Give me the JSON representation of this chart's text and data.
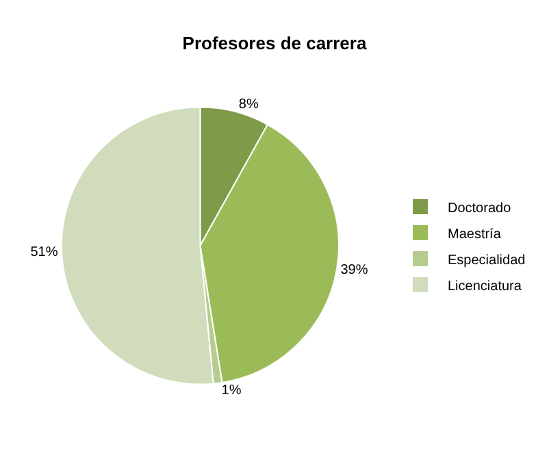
{
  "chart_data": {
    "type": "pie",
    "title": "Profesores de carrera",
    "categories": [
      "Doctorado",
      "Maestría",
      "Especialidad",
      "Licenciatura"
    ],
    "values": [
      8,
      39,
      1,
      51
    ],
    "value_labels": [
      "8%",
      "39%",
      "1%",
      "51%"
    ],
    "colors": [
      "#7f9a48",
      "#9bbb59",
      "#b5cc8e",
      "#d0dcbc"
    ],
    "legend": "right"
  }
}
